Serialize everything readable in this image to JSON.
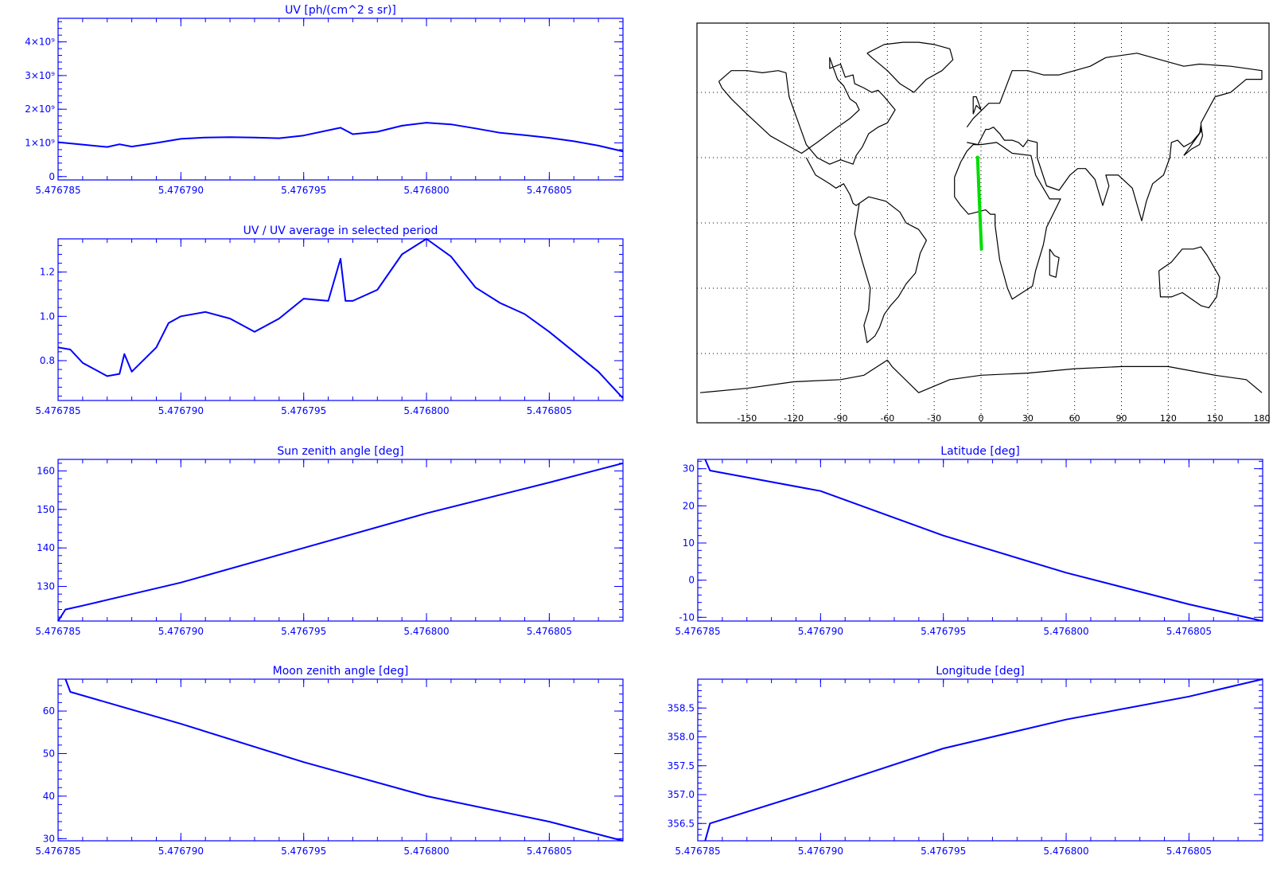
{
  "colors": {
    "axis": "#0000ff",
    "line": "#0000ff",
    "track": "#00dd00",
    "map": "#000000"
  },
  "chart_data": [
    {
      "id": "uv",
      "type": "line",
      "title": "UV [ph/(cm^2 s sr)]",
      "xlim": [
        5.476785,
        5.476808
      ],
      "ylim": [
        -0.1,
        4.7
      ],
      "y_ticks": [
        0,
        1,
        2,
        3,
        4
      ],
      "y_tick_labels": [
        "0",
        "1×10⁹",
        "2×10⁹",
        "3×10⁹",
        "4×10⁹"
      ],
      "x_ticks": [
        5.476785,
        5.47679,
        5.476795,
        5.4768,
        5.476805
      ],
      "x_tick_labels": [
        "5.476785",
        "5.476790",
        "5.476795",
        "5.476800",
        "5.476805"
      ],
      "y_unit_multiplier": "10^9",
      "series": [
        {
          "x": [
            5.476785,
            5.476786,
            5.476787,
            5.4767875,
            5.476788,
            5.476789,
            5.47679,
            5.476791,
            5.476792,
            5.476793,
            5.476794,
            5.476795,
            5.4767965,
            5.476797,
            5.476798,
            5.476799,
            5.4768,
            5.476801,
            5.476802,
            5.476803,
            5.476804,
            5.476805,
            5.476806,
            5.476807,
            5.476808
          ],
          "y": [
            1.02,
            0.95,
            0.88,
            0.96,
            0.89,
            1.0,
            1.12,
            1.16,
            1.17,
            1.16,
            1.14,
            1.22,
            1.45,
            1.26,
            1.33,
            1.51,
            1.6,
            1.55,
            1.43,
            1.3,
            1.23,
            1.15,
            1.05,
            0.92,
            0.75
          ]
        }
      ]
    },
    {
      "id": "uv-ratio",
      "type": "line",
      "title": "UV / UV average in selected period",
      "xlim": [
        5.476785,
        5.476808
      ],
      "ylim": [
        0.62,
        1.35
      ],
      "y_ticks": [
        0.8,
        1.0,
        1.2
      ],
      "y_tick_labels": [
        "0.8",
        "1.0",
        "1.2"
      ],
      "x_ticks": [
        5.476785,
        5.47679,
        5.476795,
        5.4768,
        5.476805
      ],
      "x_tick_labels": [
        "5.476785",
        "5.476790",
        "5.476795",
        "5.476800",
        "5.476805"
      ],
      "series": [
        {
          "x": [
            5.476785,
            5.4767855,
            5.476786,
            5.476787,
            5.4767875,
            5.4767877,
            5.476788,
            5.476789,
            5.4767895,
            5.47679,
            5.476791,
            5.476792,
            5.476793,
            5.476794,
            5.476795,
            5.476796,
            5.4767965,
            5.4767967,
            5.476797,
            5.476798,
            5.476799,
            5.4768,
            5.476801,
            5.476802,
            5.476803,
            5.476804,
            5.476805,
            5.476806,
            5.476807,
            5.476808
          ],
          "y": [
            0.86,
            0.85,
            0.79,
            0.73,
            0.74,
            0.83,
            0.75,
            0.86,
            0.97,
            1.0,
            1.02,
            0.99,
            0.93,
            0.99,
            1.08,
            1.07,
            1.26,
            1.07,
            1.07,
            1.12,
            1.28,
            1.35,
            1.27,
            1.13,
            1.06,
            1.01,
            0.93,
            0.84,
            0.75,
            0.63
          ]
        }
      ]
    },
    {
      "id": "sun-zenith",
      "type": "line",
      "title": "Sun zenith angle [deg]",
      "xlim": [
        5.476785,
        5.476808
      ],
      "ylim": [
        121,
        163
      ],
      "y_ticks": [
        130,
        140,
        150,
        160
      ],
      "y_tick_labels": [
        "130",
        "140",
        "150",
        "160"
      ],
      "x_ticks": [
        5.476785,
        5.47679,
        5.476795,
        5.4768,
        5.476805
      ],
      "x_tick_labels": [
        "5.476785",
        "5.476790",
        "5.476795",
        "5.476800",
        "5.476805"
      ],
      "series": [
        {
          "x": [
            5.476785,
            5.4767853,
            5.476786,
            5.47679,
            5.476795,
            5.4768,
            5.476805,
            5.476808
          ],
          "y": [
            121,
            124,
            125,
            131,
            140,
            149,
            157,
            162
          ]
        }
      ]
    },
    {
      "id": "latitude",
      "type": "line",
      "title": "Latitude [deg]",
      "xlim": [
        5.476785,
        5.476808
      ],
      "ylim": [
        -11,
        32.5
      ],
      "y_ticks": [
        -10,
        0,
        10,
        20,
        30
      ],
      "y_tick_labels": [
        "-10",
        "0",
        "10",
        "20",
        "30"
      ],
      "x_ticks": [
        5.476785,
        5.47679,
        5.476795,
        5.4768,
        5.476805
      ],
      "x_tick_labels": [
        "5.476785",
        "5.476790",
        "5.476795",
        "5.476800",
        "5.476805"
      ],
      "series": [
        {
          "x": [
            5.4767853,
            5.4767855,
            5.47679,
            5.476795,
            5.4768,
            5.476805,
            5.476808
          ],
          "y": [
            32.5,
            29.5,
            24,
            12,
            2,
            -6.5,
            -11
          ]
        }
      ]
    },
    {
      "id": "moon-zenith",
      "type": "line",
      "title": "Moon zenith angle [deg]",
      "xlim": [
        5.476785,
        5.476808
      ],
      "ylim": [
        29.5,
        67.5
      ],
      "y_ticks": [
        30,
        40,
        50,
        60
      ],
      "y_tick_labels": [
        "30",
        "40",
        "50",
        "60"
      ],
      "x_ticks": [
        5.476785,
        5.47679,
        5.476795,
        5.4768,
        5.476805
      ],
      "x_tick_labels": [
        "5.476785",
        "5.476790",
        "5.476795",
        "5.476800",
        "5.476805"
      ],
      "series": [
        {
          "x": [
            5.4767853,
            5.4767855,
            5.47679,
            5.476795,
            5.4768,
            5.476805,
            5.476808
          ],
          "y": [
            67.5,
            64.5,
            57,
            48,
            40,
            34,
            29.5
          ]
        }
      ]
    },
    {
      "id": "longitude",
      "type": "line",
      "title": "Longitude [deg]",
      "xlim": [
        5.476785,
        5.476808
      ],
      "ylim": [
        356.2,
        359.0
      ],
      "y_ticks": [
        356.5,
        357.0,
        357.5,
        358.0,
        358.5
      ],
      "y_tick_labels": [
        "356.5",
        "357.0",
        "357.5",
        "358.0",
        "358.5"
      ],
      "x_ticks": [
        5.476785,
        5.47679,
        5.476795,
        5.4768,
        5.476805
      ],
      "x_tick_labels": [
        "5.476785",
        "5.476790",
        "5.476795",
        "5.476800",
        "5.476805"
      ],
      "series": [
        {
          "x": [
            5.4767853,
            5.4767855,
            5.47679,
            5.476795,
            5.4768,
            5.476805,
            5.476808
          ],
          "y": [
            356.2,
            356.5,
            357.1,
            357.8,
            358.3,
            358.7,
            359.0
          ]
        }
      ]
    }
  ],
  "map": {
    "type": "map",
    "projection": "equirectangular",
    "lon_range": [
      -180,
      180
    ],
    "lat_range": [
      -90,
      90
    ],
    "lon_tick_labels": [
      "-150",
      "-120",
      "-90",
      "-60",
      "-30",
      "0",
      "30",
      "60",
      "90",
      "120",
      "150",
      "180"
    ],
    "lon_ticks": [
      -150,
      -120,
      -90,
      -60,
      -30,
      0,
      30,
      60,
      90,
      120,
      150,
      180
    ],
    "grid_lon": [
      -150,
      -120,
      -90,
      -60,
      -30,
      0,
      30,
      60,
      90,
      120,
      150
    ],
    "grid_lat": [
      -60,
      -30,
      0,
      30,
      60
    ],
    "track": {
      "lon": [
        -2.2,
        -1.2,
        -0.3,
        0.3
      ],
      "lat": [
        30.2,
        13.0,
        -2.0,
        -12.0
      ]
    },
    "coastlines": [
      {
        "name": "north-america",
        "lon": [
          -168,
          -160,
          -150,
          -140,
          -130,
          -125,
          -123,
          -118,
          -112,
          -105,
          -97,
          -90,
          -82,
          -80,
          -76,
          -72,
          -66,
          -60,
          -55,
          -62,
          -66,
          -70,
          -75,
          -81,
          -82,
          -87,
          -90,
          -97,
          -97,
          -92,
          -88,
          -84,
          -80,
          -78,
          -84,
          -92,
          -105,
          -115,
          -125,
          -135,
          -150,
          -160,
          -166,
          -168
        ],
        "lat": [
          65,
          70,
          70,
          69,
          70,
          69,
          58,
          48,
          36,
          30,
          27,
          29,
          27,
          31,
          35,
          41,
          44,
          46,
          52,
          58,
          61,
          60,
          62,
          64,
          68,
          67,
          73,
          71,
          76,
          66,
          63,
          57,
          55,
          52,
          48,
          44,
          37,
          32,
          36,
          40,
          50,
          57,
          62,
          65
        ]
      },
      {
        "name": "central-america",
        "lon": [
          -112,
          -106,
          -97,
          -93,
          -88,
          -84,
          -82,
          -80,
          -78
        ],
        "lat": [
          30,
          22,
          18,
          16,
          18,
          13,
          9,
          8,
          9
        ]
      },
      {
        "name": "south-america",
        "lon": [
          -78,
          -72,
          -61,
          -52,
          -48,
          -40,
          -35,
          -39,
          -42,
          -48,
          -53,
          -58,
          -62,
          -65,
          -68,
          -73,
          -75,
          -72,
          -71,
          -76,
          -81,
          -80,
          -78
        ],
        "lat": [
          9,
          12,
          10,
          5,
          0,
          -3,
          -8,
          -14,
          -23,
          -28,
          -34,
          -38,
          -42,
          -48,
          -52,
          -55,
          -47,
          -40,
          -30,
          -18,
          -5,
          0,
          9
        ]
      },
      {
        "name": "greenland",
        "lon": [
          -73,
          -62,
          -50,
          -40,
          -30,
          -20,
          -18,
          -25,
          -35,
          -43,
          -52,
          -60,
          -70,
          -73
        ],
        "lat": [
          78,
          82,
          83,
          83,
          82,
          80,
          75,
          70,
          66,
          60,
          64,
          70,
          76,
          78
        ]
      },
      {
        "name": "africa",
        "lon": [
          -17,
          -13,
          -9,
          -5,
          0,
          10,
          20,
          32,
          35,
          44,
          51,
          42,
          40,
          35,
          33,
          20,
          17,
          12,
          9,
          9,
          6,
          3,
          -8,
          -13,
          -17,
          -17
        ],
        "lat": [
          21,
          28,
          33,
          36,
          36,
          37,
          32,
          31,
          22,
          11,
          11,
          -2,
          -10,
          -22,
          -29,
          -35,
          -30,
          -17,
          -1,
          4,
          4,
          6,
          4,
          8,
          12,
          21
        ]
      },
      {
        "name": "madagascar",
        "lon": [
          44,
          47,
          50,
          48,
          44,
          44
        ],
        "lat": [
          -12,
          -15,
          -16,
          -25,
          -24,
          -12
        ]
      },
      {
        "name": "eurasia",
        "lon": [
          -9,
          -2,
          3,
          5,
          8,
          12,
          15,
          20,
          24,
          27,
          30,
          36,
          36,
          42,
          50,
          57,
          62,
          67,
          73,
          78,
          82,
          80,
          88,
          97,
          103,
          106,
          110,
          117,
          121,
          122,
          126,
          130,
          135,
          141,
          141,
          150,
          160,
          170,
          180,
          180,
          160,
          140,
          130,
          110,
          100,
          80,
          70,
          60,
          50,
          40,
          30,
          20,
          12,
          5,
          -5,
          -9
        ],
        "lat": [
          37,
          36,
          43,
          43,
          44,
          41,
          38,
          38,
          37,
          35,
          38,
          37,
          30,
          17,
          15,
          22,
          25,
          25,
          20,
          8,
          17,
          22,
          22,
          16,
          1,
          10,
          18,
          22,
          30,
          37,
          38,
          35,
          37,
          42,
          46,
          58,
          60,
          66,
          66,
          70,
          72,
          73,
          72,
          76,
          78,
          76,
          72,
          70,
          68,
          68,
          70,
          70,
          55,
          55,
          48,
          44
        ]
      },
      {
        "name": "british-isles",
        "lon": [
          -5,
          -3,
          0,
          -3,
          -5,
          -5
        ],
        "lat": [
          50,
          54,
          52,
          58,
          58,
          50
        ]
      },
      {
        "name": "japan",
        "lon": [
          130,
          135,
          140,
          142,
          141,
          140,
          130
        ],
        "lat": [
          31,
          34,
          36,
          40,
          45,
          41,
          31
        ]
      },
      {
        "name": "australia",
        "lon": [
          114,
          122,
          129,
          136,
          141,
          145,
          153,
          151,
          146,
          141,
          135,
          129,
          122,
          115,
          114
        ],
        "lat": [
          -22,
          -18,
          -12,
          -12,
          -11,
          -15,
          -25,
          -34,
          -39,
          -38,
          -35,
          -32,
          -34,
          -34,
          -22
        ]
      },
      {
        "name": "antarctica",
        "lon": [
          -180,
          -150,
          -120,
          -90,
          -75,
          -60,
          -57,
          -40,
          -20,
          0,
          30,
          60,
          90,
          120,
          150,
          170,
          180
        ],
        "lat": [
          -78,
          -76,
          -73,
          -72,
          -70,
          -63,
          -66,
          -78,
          -72,
          -70,
          -69,
          -67,
          -66,
          -66,
          -70,
          -72,
          -78
        ]
      }
    ]
  }
}
